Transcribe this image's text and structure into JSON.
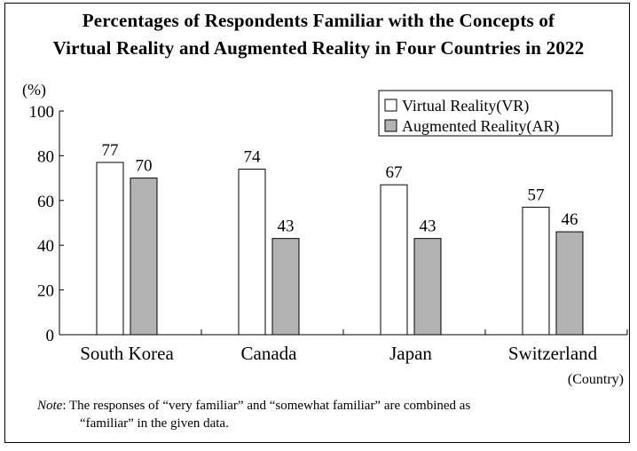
{
  "chart_data": {
    "type": "bar",
    "title": "Percentages of Respondents Familiar with the Concepts of Virtual Reality and Augmented Reality in Four Countries in 2022",
    "title_lines": [
      "Percentages of Respondents Familiar with the Concepts of",
      "Virtual Reality and Augmented Reality in Four Countries in 2022"
    ],
    "ylabel": "(%)",
    "xlabel": "(Country)",
    "ylim": [
      0,
      100
    ],
    "yticks": [
      0,
      20,
      40,
      60,
      80,
      100
    ],
    "categories": [
      "South  Korea",
      "Canada",
      "Japan",
      "Switzerland"
    ],
    "series": [
      {
        "name": "Virtual Reality(VR)",
        "color": "#ffffff",
        "values": [
          77,
          74,
          67,
          57
        ]
      },
      {
        "name": "Augmented Reality(AR)",
        "color": "#b3b3b3",
        "values": [
          70,
          43,
          43,
          46
        ]
      }
    ],
    "legend": "top-right",
    "grid": false
  },
  "note": {
    "label": "Note",
    "text_line1": ": The responses of “very familiar” and “somewhat familiar” are combined as",
    "text_line2": "“familiar” in the given data."
  }
}
